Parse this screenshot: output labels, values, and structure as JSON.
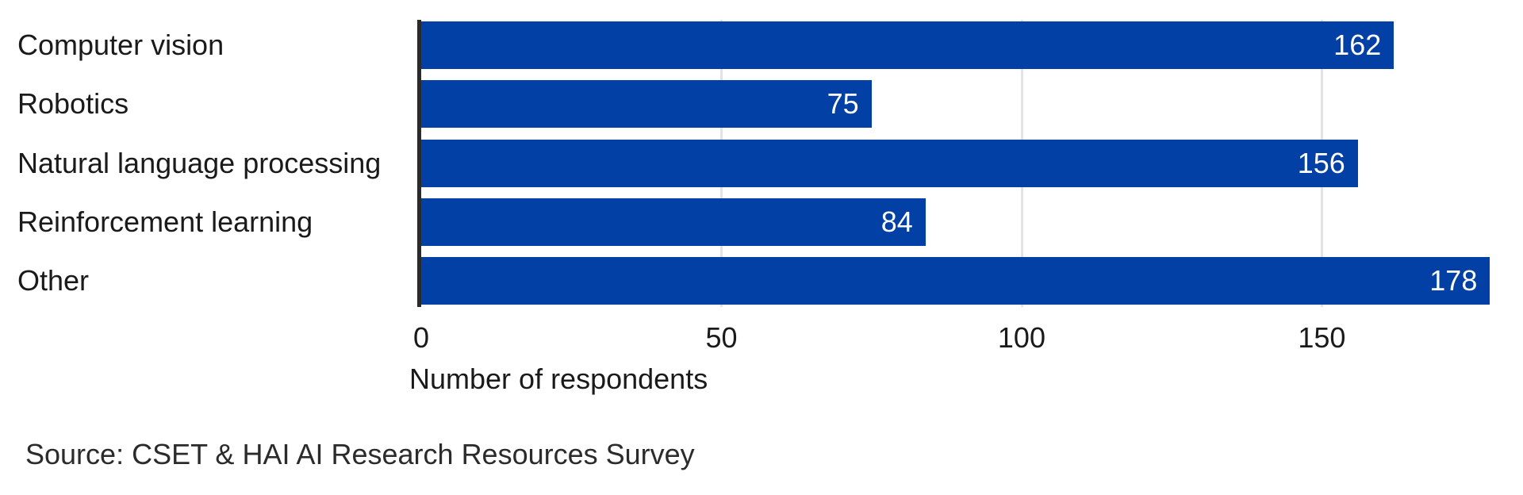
{
  "figure": {
    "background": "#ffffff",
    "source_note": "Source: CSET & HAI AI Research Resources Survey"
  },
  "chart_data": {
    "type": "bar",
    "orientation": "horizontal",
    "title": "",
    "categories": [
      "Computer vision",
      "Robotics",
      "Natural language processing",
      "Reinforcement learning",
      "Other"
    ],
    "values": [
      162,
      75,
      156,
      84,
      178
    ],
    "value_labels_position": "inside-end",
    "xlabel": "Number of respondents",
    "ylabel": "",
    "xlim": [
      0,
      183.5
    ],
    "xticks": [
      0,
      50,
      100,
      150
    ],
    "grid": "vertical-gridlines",
    "legend": "none",
    "colors": {
      "bar": "#0340a5",
      "value_label": "#ffffff",
      "gridline": "#e3e3e3",
      "axis_line": "#2b2b2b",
      "text": "#1a1a1a",
      "source_text": "#2b2b2b",
      "background": "#ffffff"
    }
  }
}
